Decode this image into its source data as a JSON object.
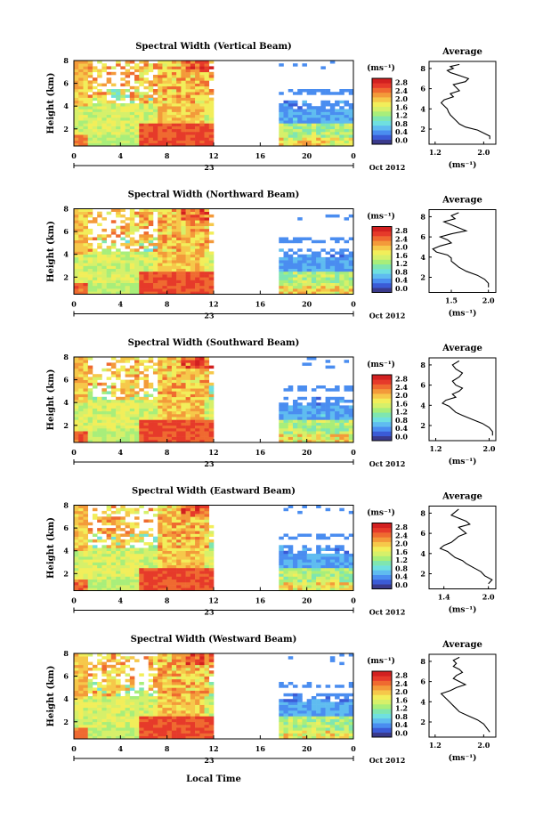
{
  "shared": {
    "colorbar_unit": "(ms⁻¹)",
    "colorbar_ticks": [
      "2.8",
      "2.4",
      "2.0",
      "1.6",
      "1.2",
      "0.8",
      "0.4",
      "0.0"
    ],
    "x_ticks": [
      "0",
      "4",
      "8",
      "12",
      "16",
      "20",
      "0"
    ],
    "x_day": "23",
    "month_label": "Oct 2012",
    "xlabel": "Local Time",
    "ylabel": "Height (km)",
    "y_ticks": [
      "2",
      "4",
      "6",
      "8"
    ],
    "avg_title": "Average",
    "avg_xlabel": "(ms⁻¹)",
    "avg_y_ticks": [
      "2",
      "4",
      "6",
      "8"
    ]
  },
  "chart_data": [
    {
      "type": "heatmap",
      "title": "Spectral Width (Vertical Beam)",
      "xlabel": "",
      "ylabel": "Height (km)",
      "xlim": [
        0,
        24
      ],
      "ylim": [
        0.5,
        8
      ],
      "colorbar_range": [
        0,
        3.0
      ],
      "avg_profile": {
        "xticks": [
          "1.2",
          "2.0"
        ],
        "xlim": [
          1.1,
          2.2
        ],
        "x": [
          2.1,
          2.1,
          2.0,
          1.9,
          1.7,
          1.6,
          1.55,
          1.5,
          1.45,
          1.42,
          1.4,
          1.35,
          1.3,
          1.35,
          1.5,
          1.45,
          1.6,
          1.55,
          1.5,
          1.7,
          1.75,
          1.65,
          1.55,
          1.45,
          1.4,
          1.5,
          1.45,
          1.6
        ],
        "y": [
          1.0,
          1.3,
          1.6,
          1.9,
          2.2,
          2.5,
          2.8,
          3.1,
          3.4,
          3.7,
          4.0,
          4.3,
          4.6,
          4.9,
          5.2,
          5.5,
          5.8,
          6.1,
          6.4,
          6.7,
          7.0,
          7.2,
          7.4,
          7.6,
          7.8,
          8.0,
          8.2,
          8.4
        ]
      }
    },
    {
      "type": "heatmap",
      "title": "Spectral Width (Northward Beam)",
      "xlabel": "",
      "ylabel": "Height (km)",
      "xlim": [
        0,
        24
      ],
      "ylim": [
        0.5,
        8
      ],
      "colorbar_range": [
        0,
        3.0
      ],
      "avg_profile": {
        "xticks": [
          "1.5",
          "2.0"
        ],
        "xlim": [
          1.2,
          2.1
        ],
        "x": [
          2.0,
          2.0,
          1.95,
          1.85,
          1.7,
          1.6,
          1.55,
          1.5,
          1.5,
          1.45,
          1.3,
          1.25,
          1.35,
          1.5,
          1.45,
          1.35,
          1.5,
          1.7,
          1.6,
          1.5,
          1.4,
          1.55,
          1.5,
          1.6
        ],
        "y": [
          1.0,
          1.4,
          1.8,
          2.2,
          2.6,
          3.0,
          3.3,
          3.6,
          3.9,
          4.2,
          4.5,
          4.8,
          5.1,
          5.4,
          5.7,
          6.0,
          6.3,
          6.6,
          6.9,
          7.2,
          7.5,
          7.8,
          8.1,
          8.4
        ]
      }
    },
    {
      "type": "heatmap",
      "title": "Spectral Width (Southward Beam)",
      "xlabel": "",
      "ylabel": "Height (km)",
      "xlim": [
        0,
        24
      ],
      "ylim": [
        0.5,
        8
      ],
      "colorbar_range": [
        0,
        3.0
      ],
      "avg_profile": {
        "xticks": [
          "1.2",
          "2.0"
        ],
        "xlim": [
          1.1,
          2.1
        ],
        "x": [
          2.05,
          2.05,
          2.0,
          1.9,
          1.75,
          1.6,
          1.5,
          1.45,
          1.4,
          1.3,
          1.35,
          1.5,
          1.45,
          1.55,
          1.6,
          1.5,
          1.45,
          1.55,
          1.6,
          1.5,
          1.45,
          1.55
        ],
        "y": [
          1.0,
          1.4,
          1.8,
          2.2,
          2.6,
          3.0,
          3.3,
          3.6,
          3.9,
          4.2,
          4.5,
          4.8,
          5.1,
          5.4,
          5.7,
          6.0,
          6.4,
          6.8,
          7.2,
          7.6,
          8.0,
          8.4
        ]
      }
    },
    {
      "type": "heatmap",
      "title": "Spectral Width (Eastward Beam)",
      "xlabel": "",
      "ylabel": "Height (km)",
      "xlim": [
        0,
        24
      ],
      "ylim": [
        0.5,
        8
      ],
      "colorbar_range": [
        0,
        3.0
      ],
      "avg_profile": {
        "xticks": [
          "1.4",
          "2.0"
        ],
        "xlim": [
          1.2,
          2.1
        ],
        "x": [
          2.0,
          2.05,
          1.95,
          1.9,
          1.8,
          1.7,
          1.65,
          1.55,
          1.5,
          1.45,
          1.35,
          1.4,
          1.5,
          1.55,
          1.6,
          1.7,
          1.65,
          1.6,
          1.75,
          1.7,
          1.6,
          1.5,
          1.55,
          1.6
        ],
        "y": [
          1.0,
          1.4,
          1.8,
          2.2,
          2.6,
          3.0,
          3.3,
          3.6,
          3.9,
          4.2,
          4.5,
          4.8,
          5.1,
          5.4,
          5.7,
          6.0,
          6.3,
          6.6,
          6.9,
          7.2,
          7.5,
          7.8,
          8.1,
          8.4
        ]
      }
    },
    {
      "type": "heatmap",
      "title": "Spectral Width (Westward Beam)",
      "xlabel": "Local Time",
      "ylabel": "Height (km)",
      "xlim": [
        0,
        24
      ],
      "ylim": [
        0.5,
        8
      ],
      "colorbar_range": [
        0,
        3.0
      ],
      "avg_profile": {
        "xticks": [
          "1.2",
          "2.0"
        ],
        "xlim": [
          1.1,
          2.2
        ],
        "x": [
          2.1,
          2.05,
          2.0,
          1.9,
          1.75,
          1.6,
          1.55,
          1.5,
          1.45,
          1.4,
          1.35,
          1.3,
          1.45,
          1.55,
          1.7,
          1.6,
          1.5,
          1.55,
          1.65,
          1.6,
          1.5,
          1.55,
          1.5,
          1.6
        ],
        "y": [
          1.0,
          1.4,
          1.8,
          2.2,
          2.6,
          3.0,
          3.3,
          3.6,
          3.9,
          4.2,
          4.5,
          4.8,
          5.1,
          5.4,
          5.7,
          6.0,
          6.3,
          6.6,
          6.9,
          7.2,
          7.5,
          7.8,
          8.1,
          8.4
        ]
      }
    }
  ]
}
